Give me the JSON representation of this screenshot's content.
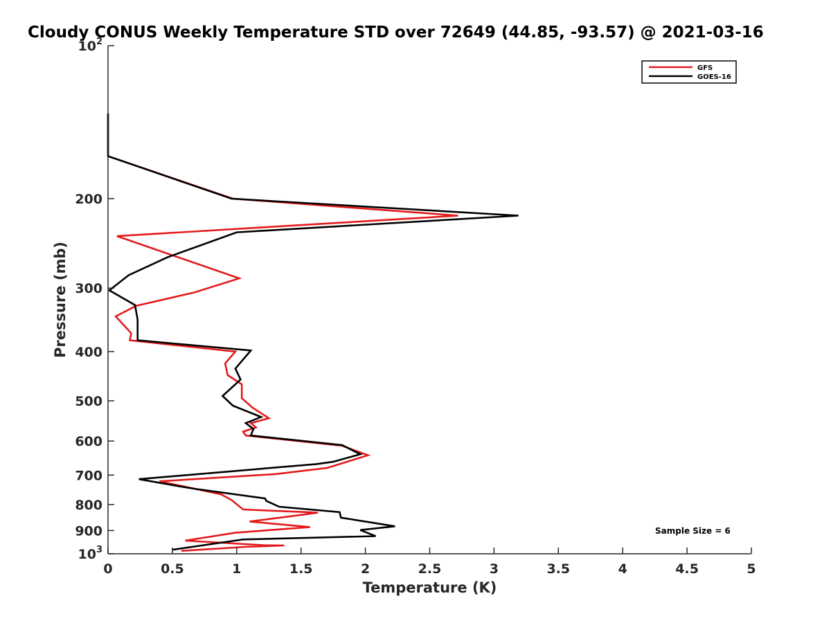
{
  "chart_data": {
    "type": "line",
    "title": "Cloudy CONUS Weekly Temperature STD over 72649 (44.85, -93.57) @ 2021-03-16",
    "xlabel": "Temperature (K)",
    "ylabel": "Pressure (mb)",
    "xlim": [
      0,
      5
    ],
    "ylim": [
      100,
      1000
    ],
    "y_scale": "log",
    "y_reversed": true,
    "grid": false,
    "x_ticks": [
      "0",
      "0.5",
      "1",
      "1.5",
      "2",
      "2.5",
      "3",
      "3.5",
      "4",
      "4.5",
      "5"
    ],
    "y_ticks": [
      {
        "value": 100,
        "base": "10",
        "exp": "2"
      },
      {
        "value": 200,
        "label": "200"
      },
      {
        "value": 300,
        "label": "300"
      },
      {
        "value": 400,
        "label": "400"
      },
      {
        "value": 500,
        "label": "500"
      },
      {
        "value": 600,
        "label": "600"
      },
      {
        "value": 700,
        "label": "700"
      },
      {
        "value": 800,
        "label": "800"
      },
      {
        "value": 900,
        "label": "900"
      },
      {
        "value": 1000,
        "base": "10",
        "exp": "3"
      }
    ],
    "legend_position": "top-right",
    "annotation": "Sample Size = 6",
    "series": [
      {
        "name": "GFS",
        "color": "#e31a1c",
        "points": [
          [
            0,
            136
          ],
          [
            0,
            165
          ],
          [
            0.97,
            200
          ],
          [
            2.72,
            216
          ],
          [
            0.07,
            237
          ],
          [
            1.02,
            287
          ],
          [
            0.67,
            306
          ],
          [
            0.22,
            325
          ],
          [
            0.06,
            341
          ],
          [
            0.18,
            368
          ],
          [
            0.17,
            380
          ],
          [
            0.99,
            400
          ],
          [
            0.91,
            422
          ],
          [
            0.93,
            445
          ],
          [
            1.04,
            464
          ],
          [
            1.04,
            494
          ],
          [
            1.12,
            515
          ],
          [
            1.25,
            541
          ],
          [
            1.11,
            553
          ],
          [
            1.15,
            564
          ],
          [
            1.05,
            575
          ],
          [
            1.07,
            585
          ],
          [
            1.82,
            613
          ],
          [
            2.02,
            640
          ],
          [
            1.7,
            678
          ],
          [
            1.3,
            697
          ],
          [
            0.4,
            720
          ],
          [
            0.88,
            764
          ],
          [
            0.96,
            784
          ],
          [
            1.05,
            818
          ],
          [
            1.63,
            830
          ],
          [
            1.4,
            845
          ],
          [
            1.1,
            864
          ],
          [
            1.57,
            886
          ],
          [
            0.99,
            909
          ],
          [
            0.6,
            942
          ],
          [
            1.22,
            962
          ],
          [
            1.37,
            963
          ],
          [
            1.07,
            969
          ],
          [
            0.57,
            987
          ]
        ]
      },
      {
        "name": "GOES-16",
        "color": "#000000",
        "points": [
          [
            0,
            136
          ],
          [
            0,
            165
          ],
          [
            0.96,
            200
          ],
          [
            3.19,
            216
          ],
          [
            1,
            233
          ],
          [
            0.46,
            261
          ],
          [
            0.16,
            283
          ],
          [
            0.01,
            303
          ],
          [
            0.21,
            324
          ],
          [
            0.23,
            346
          ],
          [
            0.23,
            368
          ],
          [
            0.23,
            380
          ],
          [
            1.11,
            398
          ],
          [
            0.99,
            432
          ],
          [
            1.03,
            454
          ],
          [
            0.89,
            489
          ],
          [
            0.97,
            511
          ],
          [
            1.19,
            538
          ],
          [
            1.07,
            553
          ],
          [
            1.13,
            568
          ],
          [
            1.11,
            585
          ],
          [
            1.82,
            611
          ],
          [
            1.96,
            637
          ],
          [
            1.75,
            659
          ],
          [
            1.62,
            666
          ],
          [
            0.24,
            713
          ],
          [
            0.56,
            737
          ],
          [
            0.69,
            746
          ],
          [
            1.22,
            778
          ],
          [
            1.23,
            787
          ],
          [
            1.33,
            808
          ],
          [
            1.8,
            828
          ],
          [
            1.81,
            849
          ],
          [
            2.23,
            883
          ],
          [
            1.96,
            898
          ],
          [
            2.08,
            923
          ],
          [
            1.05,
            937
          ],
          [
            0.95,
            945
          ],
          [
            0.5,
            982
          ]
        ]
      }
    ]
  }
}
